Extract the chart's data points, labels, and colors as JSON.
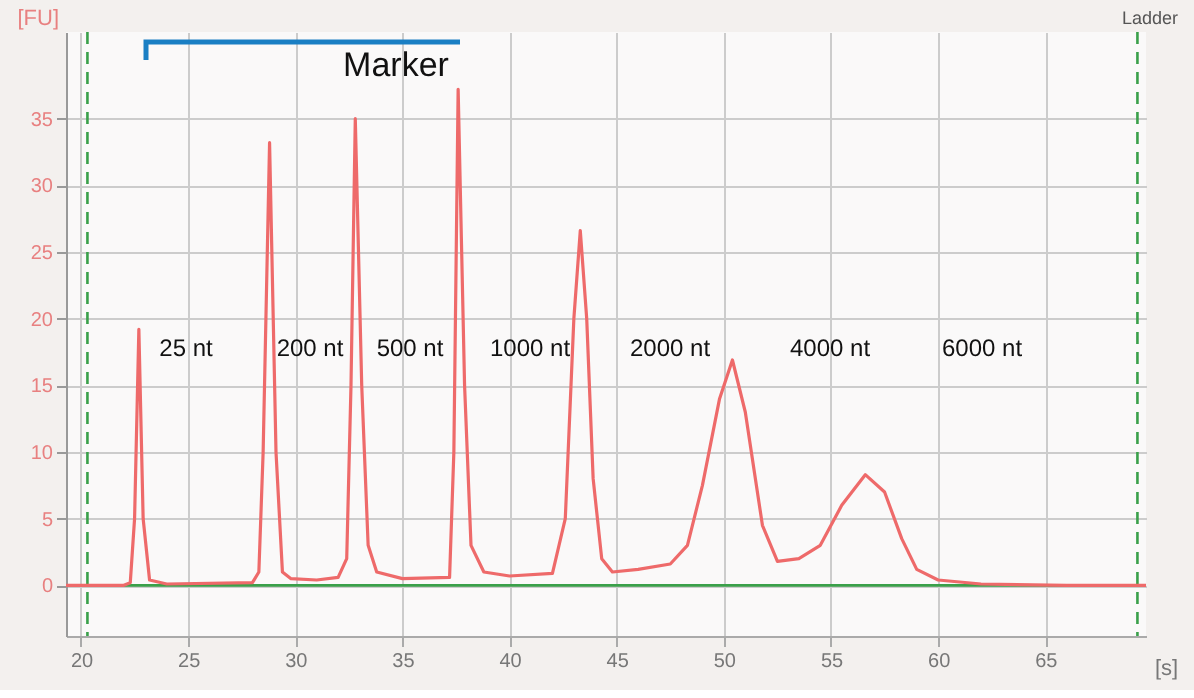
{
  "chart_data": {
    "type": "line",
    "xlabel": "[s]",
    "ylabel": "[FU]",
    "x": [
      19.3,
      22,
      22.3,
      22.5,
      22.7,
      22.9,
      23.2,
      24,
      28,
      28.3,
      28.5,
      28.8,
      29.1,
      29.4,
      29.8,
      31,
      32,
      32.4,
      32.6,
      32.8,
      33.1,
      33.4,
      33.8,
      35,
      37.2,
      37.4,
      37.6,
      37.9,
      38.2,
      38.8,
      40,
      42,
      42.6,
      43,
      43.3,
      43.6,
      43.9,
      44.3,
      44.8,
      46,
      47.5,
      48.3,
      49,
      49.8,
      50.4,
      51,
      51.8,
      52.5,
      53.5,
      54.5,
      55.5,
      56.6,
      57.5,
      58.3,
      59,
      60,
      62,
      66,
      69.7
    ],
    "series": [
      {
        "color": "#ee6a6a",
        "values": [
          0,
          0,
          0.2,
          5,
          19.2,
          5,
          0.4,
          0.1,
          0.2,
          1,
          10,
          33.2,
          10,
          1,
          0.5,
          0.4,
          0.6,
          2,
          15,
          35,
          15,
          3,
          1,
          0.5,
          0.6,
          10,
          37.2,
          15,
          3,
          1,
          0.7,
          0.9,
          5,
          20,
          26.6,
          20,
          8,
          2,
          1,
          1.2,
          1.6,
          3,
          7.5,
          14,
          16.9,
          13,
          4.5,
          1.8,
          2,
          3,
          6,
          8.3,
          7,
          3.5,
          1.2,
          0.4,
          0.1,
          0,
          0
        ]
      }
    ],
    "xlim": [
      19.3,
      69.7
    ],
    "ylim": [
      -3.8,
      41.5
    ],
    "xticks": [
      20,
      25,
      30,
      35,
      40,
      45,
      50,
      55,
      60,
      65
    ],
    "yticks": [
      0,
      5,
      10,
      15,
      20,
      25,
      30,
      35
    ],
    "grid": true,
    "line_style": "solid",
    "marker": "none",
    "ref_lines": [
      {
        "axis": "x",
        "value": 20.3,
        "color": "#3aa04a",
        "line_style": "dashed"
      },
      {
        "axis": "x",
        "value": 69.3,
        "color": "#3aa04a",
        "line_style": "dashed"
      },
      {
        "axis": "y",
        "value": 0,
        "color": "#3aa04a",
        "line_style": "solid"
      }
    ],
    "annotations": [
      "Ladder",
      "Marker",
      "25 nt",
      "200 nt",
      "500 nt",
      "1000 nt",
      "2000 nt",
      "4000 nt",
      "6000 nt"
    ]
  }
}
